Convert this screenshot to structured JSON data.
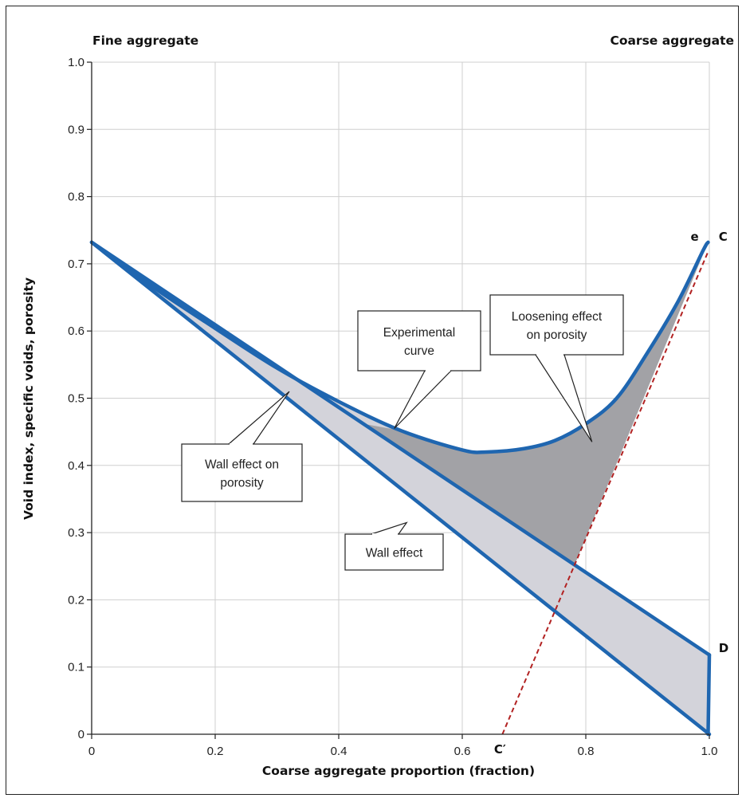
{
  "chart_data": {
    "type": "line",
    "title": "",
    "xlabel": "Coarse aggregate proportion (fraction)",
    "ylabel": "Void index, specific voids, porosity",
    "xlim": [
      0,
      1.0
    ],
    "ylim": [
      0,
      1.0
    ],
    "grid": true,
    "x_ticks": [
      {
        "value": 0,
        "label": "0"
      },
      {
        "value": 0.2,
        "label": "0.2"
      },
      {
        "value": 0.4,
        "label": "0.4"
      },
      {
        "value": 0.6,
        "label": "0.6"
      },
      {
        "value": 0.8,
        "label": "0.8"
      },
      {
        "value": 1.0,
        "label": "1.0"
      }
    ],
    "y_ticks": [
      {
        "value": 0,
        "label": "0"
      },
      {
        "value": 0.1,
        "label": "0.1"
      },
      {
        "value": 0.2,
        "label": "0.2"
      },
      {
        "value": 0.3,
        "label": "0.3"
      },
      {
        "value": 0.4,
        "label": "0.4"
      },
      {
        "value": 0.5,
        "label": "0.5"
      },
      {
        "value": 0.6,
        "label": "0.6"
      },
      {
        "value": 0.7,
        "label": "0.7"
      },
      {
        "value": 0.8,
        "label": "0.8"
      },
      {
        "value": 0.9,
        "label": "0.9"
      },
      {
        "value": 1.0,
        "label": "1.0"
      }
    ],
    "corner_labels": {
      "left": "Fine aggregate",
      "right": "Coarse aggregate"
    },
    "series": [
      {
        "key": "wall_effect_line",
        "values": [
          [
            0,
            0.732
          ],
          [
            1.0,
            0
          ]
        ],
        "color": "#1f66b0"
      },
      {
        "key": "upper_line",
        "values": [
          [
            0,
            0.732
          ],
          [
            1.0,
            0.118
          ]
        ],
        "color": "#1f66b0"
      },
      {
        "key": "experimental_curve",
        "values": [
          [
            0,
            0.732
          ],
          [
            0.1,
            0.665
          ],
          [
            0.2,
            0.604
          ],
          [
            0.3,
            0.545
          ],
          [
            0.4,
            0.495
          ],
          [
            0.5,
            0.452
          ],
          [
            0.6,
            0.423
          ],
          [
            0.64,
            0.42
          ],
          [
            0.7,
            0.425
          ],
          [
            0.75,
            0.437
          ],
          [
            0.8,
            0.462
          ],
          [
            0.85,
            0.5
          ],
          [
            0.9,
            0.568
          ],
          [
            0.95,
            0.645
          ],
          [
            0.99,
            0.72
          ],
          [
            0.998,
            0.732
          ]
        ],
        "color": "#1f66b0"
      },
      {
        "key": "vertical_D",
        "values": [
          [
            0.998,
            0
          ],
          [
            1.0,
            0.118
          ]
        ],
        "color": "#1f66b0"
      },
      {
        "key": "dashed_C_Cprime",
        "values": [
          [
            0.665,
            0
          ],
          [
            0.998,
            0.718
          ]
        ],
        "color": "#b22222",
        "dashed": true
      }
    ],
    "shaded_regions": [
      {
        "key": "wall_effect_on_porosity",
        "fill": "#d3d3da"
      },
      {
        "key": "loosening_effect_on_porosity",
        "fill": "#a2a2a6"
      }
    ],
    "point_labels": [
      {
        "text": "e",
        "x": 0.98,
        "y": 0.74
      },
      {
        "text": "C",
        "x": 1.01,
        "y": 0.74
      },
      {
        "text": "D",
        "x": 1.01,
        "y": 0.128
      },
      {
        "text": "C′",
        "x": 0.656,
        "y": -0.02
      }
    ],
    "annotations": [
      {
        "key": "wall_effect_porosity",
        "lines": [
          "Wall effect on",
          "porosity"
        ],
        "target": [
          0.32,
          0.51
        ]
      },
      {
        "key": "experimental_curve",
        "lines": [
          "Experimental",
          "curve"
        ],
        "target": [
          0.49,
          0.455
        ]
      },
      {
        "key": "loosening",
        "lines": [
          "Loosening effect",
          "on porosity"
        ],
        "target": [
          0.81,
          0.435
        ]
      },
      {
        "key": "wall_effect",
        "lines": [
          "Wall effect"
        ],
        "target": [
          0.51,
          0.315
        ]
      }
    ]
  }
}
